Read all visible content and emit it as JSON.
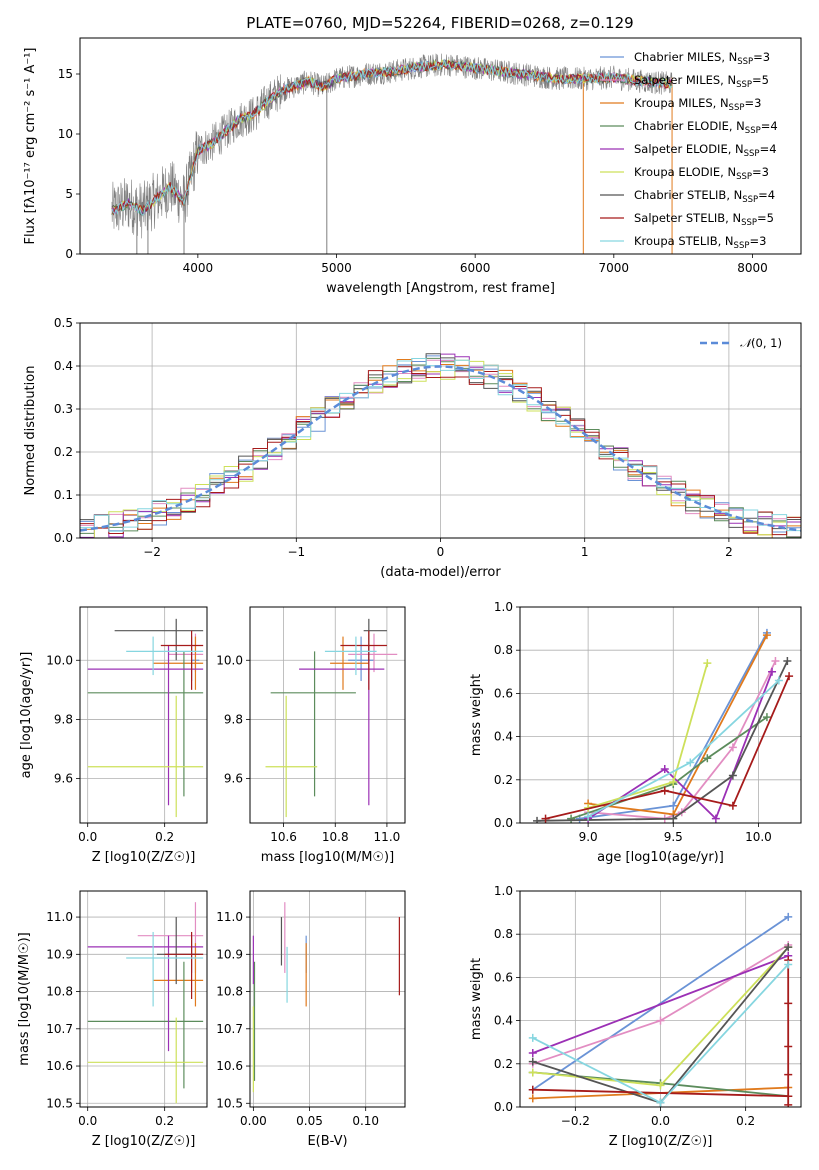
{
  "title": "PLATE=0760, MJD=52264, FIBERID=0268, z=0.129",
  "colors": {
    "miles_chabrier": "#6a93d6",
    "miles_salpeter": "#e28dc2",
    "miles_kroupa": "#e07a1d",
    "elodie_chabrier": "#5c8c5c",
    "elodie_salpeter": "#9b30b5",
    "elodie_kroupa": "#cde05a",
    "stelib_chabrier": "#555555",
    "stelib_salpeter": "#a61b1b",
    "stelib_kroupa": "#86d6e0",
    "data": "#808080",
    "normal": "#5b8bd8"
  },
  "legend": {
    "series": [
      {
        "pre": "Chabrier MILES, N",
        "post": "=3"
      },
      {
        "pre": "Salpeter MILES, N",
        "post": "=5"
      },
      {
        "pre": "Kroupa MILES, N",
        "post": "=3"
      },
      {
        "pre": "Chabrier ELODIE, N",
        "post": "=4"
      },
      {
        "pre": "Salpeter ELODIE, N",
        "post": "=4"
      },
      {
        "pre": "Kroupa ELODIE, N",
        "post": "=3"
      },
      {
        "pre": "Chabrier STELIB, N",
        "post": "=4"
      },
      {
        "pre": "Salpeter STELIB, N",
        "post": "=5"
      },
      {
        "pre": "Kroupa STELIB, N",
        "post": "=3"
      }
    ],
    "ssp_sub": "SSP",
    "normal_label": "(0, 1)",
    "normal_symbol": "𝒩"
  },
  "chart_data": [
    {
      "type": "line",
      "name": "spectrum",
      "xlabel": "wavelength [Angstrom, rest frame]",
      "ylabel": "Flux [fλ10⁻¹⁷ erg cm⁻² s⁻¹ A⁻¹]",
      "xlim": [
        3150,
        8350
      ],
      "ylim": [
        0,
        18
      ],
      "xticks": [
        4000,
        5000,
        6000,
        7000,
        8000
      ],
      "yticks": [
        0,
        5,
        10,
        15
      ],
      "model_curve": {
        "x": [
          3380,
          3500,
          3600,
          3700,
          3800,
          3900,
          4000,
          4100,
          4200,
          4300,
          4400,
          4500,
          4600,
          4700,
          4800,
          4900,
          5000,
          5200,
          5400,
          5600,
          5800,
          6000,
          6200,
          6400,
          6600,
          6800,
          7000,
          7200,
          7400
        ],
        "y": [
          3.6,
          4.2,
          3.6,
          4.6,
          5.6,
          4.4,
          8.6,
          9.2,
          10.2,
          11.2,
          11.6,
          12.7,
          13.6,
          14.0,
          14.4,
          13.9,
          14.6,
          15.0,
          15.2,
          15.6,
          15.8,
          15.5,
          15.2,
          14.9,
          14.6,
          14.6,
          14.7,
          14.4,
          14.2
        ]
      },
      "grid": false
    },
    {
      "type": "bar",
      "name": "normalized residuals",
      "xlabel": "(data-model)/error",
      "ylabel": "Normed distribution",
      "xlim": [
        -2.5,
        2.5
      ],
      "ylim": [
        0,
        0.5
      ],
      "xticks": [
        -2,
        -1,
        0,
        1,
        2
      ],
      "yticks": [
        0.0,
        0.1,
        0.2,
        0.3,
        0.4,
        0.5
      ],
      "bin_width": 0.1,
      "normal": {
        "mu": 0,
        "sigma": 1
      },
      "legend_position": "upper right",
      "grid": true
    },
    {
      "type": "scatter",
      "name": "age vs Z",
      "xlabel": "Z [log10(Z/Z☉)]",
      "ylabel": "age [log10(age/yr)]",
      "xlim": [
        -0.02,
        0.31
      ],
      "ylim": [
        9.45,
        10.18
      ],
      "xticks": [
        0.0,
        0.2
      ],
      "yticks": [
        9.6,
        9.8,
        10.0
      ],
      "points": [
        {
          "s": 0,
          "x": 0.27,
          "xerr": [
            0.27,
            0.29
          ],
          "y": 10.0,
          "yerr": [
            9.93,
            10.08
          ]
        },
        {
          "s": 1,
          "x": 0.28,
          "xerr": [
            0.21,
            0.3
          ],
          "y": 10.02,
          "yerr": [
            9.96,
            10.09
          ]
        },
        {
          "s": 2,
          "x": 0.28,
          "xerr": [
            0.17,
            0.3
          ],
          "y": 9.99,
          "yerr": [
            9.9,
            10.08
          ]
        },
        {
          "s": 3,
          "x": 0.25,
          "xerr": [
            0.0,
            0.3
          ],
          "y": 9.89,
          "yerr": [
            9.54,
            10.03
          ]
        },
        {
          "s": 4,
          "x": 0.21,
          "xerr": [
            0.0,
            0.3
          ],
          "y": 9.97,
          "yerr": [
            9.51,
            10.05
          ]
        },
        {
          "s": 5,
          "x": 0.23,
          "xerr": [
            0.0,
            0.3
          ],
          "y": 9.64,
          "yerr": [
            9.47,
            9.88
          ]
        },
        {
          "s": 6,
          "x": 0.23,
          "xerr": [
            0.07,
            0.3
          ],
          "y": 10.1,
          "yerr": [
            10.0,
            10.14
          ]
        },
        {
          "s": 7,
          "x": 0.27,
          "xerr": [
            0.19,
            0.3
          ],
          "y": 10.05,
          "yerr": [
            9.9,
            10.1
          ]
        },
        {
          "s": 8,
          "x": 0.17,
          "xerr": [
            0.1,
            0.3
          ],
          "y": 10.03,
          "yerr": [
            9.95,
            10.08
          ]
        }
      ],
      "grid": true
    },
    {
      "type": "scatter",
      "name": "age vs mass",
      "xlabel": "mass [log10(M/M☉)]",
      "ylabel": "",
      "xlim": [
        10.47,
        11.07
      ],
      "ylim": [
        9.45,
        10.18
      ],
      "xticks": [
        10.6,
        10.8,
        11.0
      ],
      "yticks": [
        9.6,
        9.8,
        10.0
      ],
      "points": [
        {
          "s": 0,
          "x": 10.9,
          "xerr": [
            10.85,
            10.95
          ],
          "y": 10.0,
          "yerr": [
            9.93,
            10.08
          ]
        },
        {
          "s": 1,
          "x": 10.95,
          "xerr": [
            10.85,
            11.04
          ],
          "y": 10.02,
          "yerr": [
            9.96,
            10.09
          ]
        },
        {
          "s": 2,
          "x": 10.83,
          "xerr": [
            10.78,
            10.93
          ],
          "y": 9.99,
          "yerr": [
            9.9,
            10.08
          ]
        },
        {
          "s": 3,
          "x": 10.72,
          "xerr": [
            10.55,
            10.88
          ],
          "y": 9.89,
          "yerr": [
            9.54,
            10.03
          ]
        },
        {
          "s": 4,
          "x": 10.93,
          "xerr": [
            10.66,
            10.99
          ],
          "y": 9.97,
          "yerr": [
            9.51,
            10.05
          ]
        },
        {
          "s": 5,
          "x": 10.61,
          "xerr": [
            10.53,
            10.73
          ],
          "y": 9.64,
          "yerr": [
            9.47,
            9.88
          ]
        },
        {
          "s": 6,
          "x": 10.93,
          "xerr": [
            10.91,
            11.0
          ],
          "y": 10.1,
          "yerr": [
            10.0,
            10.14
          ]
        },
        {
          "s": 7,
          "x": 10.93,
          "xerr": [
            10.82,
            11.0
          ],
          "y": 10.05,
          "yerr": [
            9.9,
            10.1
          ]
        },
        {
          "s": 8,
          "x": 10.88,
          "xerr": [
            10.76,
            10.96
          ],
          "y": 10.03,
          "yerr": [
            9.95,
            10.08
          ]
        }
      ],
      "grid": true
    },
    {
      "type": "line",
      "name": "mass weight vs age",
      "xlabel": "age [log10(age/yr)]",
      "ylabel": "mass weight",
      "xlim": [
        8.6,
        10.25
      ],
      "ylim": [
        0,
        1
      ],
      "xticks": [
        9.0,
        9.5,
        10.0
      ],
      "yticks": [
        0.0,
        0.2,
        0.4,
        0.6,
        0.8,
        1.0
      ],
      "series": [
        {
          "s": 0,
          "x": [
            8.95,
            9.5,
            10.05
          ],
          "y": [
            0.02,
            0.08,
            0.88
          ]
        },
        {
          "s": 1,
          "x": [
            9.0,
            9.45,
            9.55,
            9.85,
            10.1
          ],
          "y": [
            0.05,
            0.02,
            0.05,
            0.35,
            0.75
          ]
        },
        {
          "s": 2,
          "x": [
            9.0,
            9.5,
            10.05
          ],
          "y": [
            0.09,
            0.04,
            0.87
          ]
        },
        {
          "s": 3,
          "x": [
            8.9,
            9.5,
            9.7,
            10.05
          ],
          "y": [
            0.02,
            0.18,
            0.3,
            0.49
          ]
        },
        {
          "s": 4,
          "x": [
            9.0,
            9.45,
            9.75,
            10.08
          ],
          "y": [
            0.02,
            0.25,
            0.02,
            0.7
          ]
        },
        {
          "s": 5,
          "x": [
            9.0,
            9.5,
            9.7
          ],
          "y": [
            0.07,
            0.19,
            0.74
          ]
        },
        {
          "s": 6,
          "x": [
            8.7,
            9.5,
            9.85,
            10.17
          ],
          "y": [
            0.01,
            0.02,
            0.22,
            0.75
          ]
        },
        {
          "s": 7,
          "x": [
            8.75,
            9.45,
            9.85,
            10.18
          ],
          "y": [
            0.02,
            0.15,
            0.08,
            0.68
          ]
        },
        {
          "s": 8,
          "x": [
            9.0,
            9.6,
            10.12
          ],
          "y": [
            0.03,
            0.28,
            0.66
          ]
        }
      ],
      "grid": true
    },
    {
      "type": "scatter",
      "name": "mass vs Z",
      "xlabel": "Z [log10(Z/Z☉)]",
      "ylabel": "mass [log10(M/M☉)]",
      "xlim": [
        -0.02,
        0.31
      ],
      "ylim": [
        10.49,
        11.07
      ],
      "xticks": [
        0.0,
        0.2
      ],
      "yticks": [
        10.5,
        10.6,
        10.7,
        10.8,
        10.9,
        11.0
      ],
      "points": [
        {
          "s": 0,
          "x": 0.27,
          "xerr": [
            0.27,
            0.29
          ],
          "y": 10.9,
          "yerr": [
            10.85,
            10.95
          ]
        },
        {
          "s": 1,
          "x": 0.28,
          "xerr": [
            0.13,
            0.3
          ],
          "y": 10.95,
          "yerr": [
            10.85,
            11.04
          ]
        },
        {
          "s": 2,
          "x": 0.28,
          "xerr": [
            0.17,
            0.3
          ],
          "y": 10.83,
          "yerr": [
            10.76,
            10.93
          ]
        },
        {
          "s": 3,
          "x": 0.25,
          "xerr": [
            0.0,
            0.3
          ],
          "y": 10.72,
          "yerr": [
            10.54,
            10.88
          ]
        },
        {
          "s": 4,
          "x": 0.21,
          "xerr": [
            0.0,
            0.3
          ],
          "y": 10.92,
          "yerr": [
            10.64,
            10.95
          ]
        },
        {
          "s": 5,
          "x": 0.23,
          "xerr": [
            0.0,
            0.3
          ],
          "y": 10.61,
          "yerr": [
            10.5,
            10.73
          ]
        },
        {
          "s": 6,
          "x": 0.23,
          "xerr": [
            0.18,
            0.3
          ],
          "y": 10.9,
          "yerr": [
            10.82,
            11.0
          ]
        },
        {
          "s": 7,
          "x": 0.27,
          "xerr": [
            0.2,
            0.3
          ],
          "y": 10.9,
          "yerr": [
            10.78,
            10.96
          ]
        },
        {
          "s": 8,
          "x": 0.17,
          "xerr": [
            0.1,
            0.3
          ],
          "y": 10.89,
          "yerr": [
            10.76,
            10.96
          ]
        }
      ],
      "grid": true
    },
    {
      "type": "scatter",
      "name": "mass vs E(B-V)",
      "xlabel": "E(B-V)",
      "ylabel": "",
      "xlim": [
        -0.003,
        0.135
      ],
      "ylim": [
        10.49,
        11.07
      ],
      "xticks": [
        0.0,
        0.05,
        0.1
      ],
      "yticks": [
        10.5,
        10.6,
        10.7,
        10.8,
        10.9,
        11.0
      ],
      "points": [
        {
          "s": 0,
          "x": 0.047,
          "y": 10.9,
          "yerr": [
            10.85,
            10.95
          ]
        },
        {
          "s": 1,
          "x": 0.028,
          "y": 10.95,
          "yerr": [
            10.85,
            11.04
          ]
        },
        {
          "s": 2,
          "x": 0.047,
          "y": 10.83,
          "yerr": [
            10.76,
            10.93
          ]
        },
        {
          "s": 3,
          "x": 0.001,
          "y": 10.72,
          "yerr": [
            10.56,
            10.88
          ]
        },
        {
          "s": 4,
          "x": 0.0,
          "y": 10.92,
          "yerr": [
            10.82,
            10.95
          ]
        },
        {
          "s": 5,
          "x": 0.0,
          "y": 10.61,
          "yerr": [
            10.53,
            10.76
          ]
        },
        {
          "s": 6,
          "x": 0.025,
          "y": 10.9,
          "yerr": [
            10.87,
            11.0
          ]
        },
        {
          "s": 7,
          "x": 0.13,
          "y": 10.9,
          "yerr": [
            10.79,
            11.0
          ]
        },
        {
          "s": 8,
          "x": 0.03,
          "y": 10.89,
          "yerr": [
            10.77,
            10.92
          ]
        }
      ],
      "grid": true
    },
    {
      "type": "line",
      "name": "mass weight vs Z",
      "xlabel": "Z [log10(Z/Z☉)]",
      "ylabel": "mass weight",
      "xlim": [
        -0.33,
        0.33
      ],
      "ylim": [
        0,
        1
      ],
      "xticks": [
        -0.2,
        0.0,
        0.2
      ],
      "yticks": [
        0.0,
        0.2,
        0.4,
        0.6,
        0.8,
        1.0
      ],
      "series": [
        {
          "s": 0,
          "x": [
            -0.3,
            0.3
          ],
          "y": [
            0.08,
            0.88
          ]
        },
        {
          "s": 1,
          "x": [
            -0.3,
            0.0,
            0.3
          ],
          "y": [
            0.2,
            0.4,
            0.75
          ]
        },
        {
          "s": 2,
          "x": [
            -0.3,
            0.3
          ],
          "y": [
            0.04,
            0.09
          ]
        },
        {
          "s": 3,
          "x": [
            -0.3,
            0.0,
            0.3
          ],
          "y": [
            0.16,
            0.11,
            0.05
          ]
        },
        {
          "s": 4,
          "x": [
            -0.3,
            0.3
          ],
          "y": [
            0.25,
            0.7
          ]
        },
        {
          "s": 5,
          "x": [
            -0.3,
            0.0,
            0.3
          ],
          "y": [
            0.16,
            0.1,
            0.74
          ]
        },
        {
          "s": 6,
          "x": [
            -0.3,
            0.0,
            0.3
          ],
          "y": [
            0.21,
            0.02,
            0.74
          ]
        },
        {
          "s": 7,
          "x": [
            -0.3,
            0.3,
            0.3,
            0.3,
            0.3,
            0.3,
            0.3
          ],
          "y": [
            0.08,
            0.05,
            0.15,
            0.28,
            0.48,
            0.68,
            0.01
          ]
        },
        {
          "s": 8,
          "x": [
            -0.3,
            0.0,
            0.3
          ],
          "y": [
            0.32,
            0.02,
            0.66
          ]
        }
      ],
      "grid": true
    }
  ]
}
